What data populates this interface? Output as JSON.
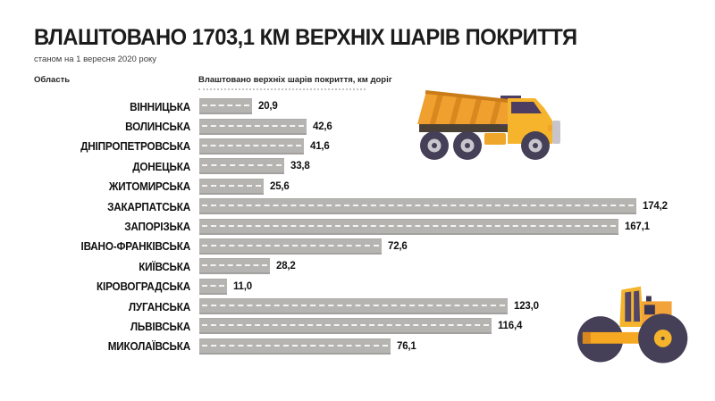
{
  "header": {
    "title": "ВЛАШТОВАНО 1703,1 КМ ВЕРХНІХ ШАРІВ ПОКРИТТЯ",
    "subtitle": "станом на 1 вересня 2020 року"
  },
  "table_headers": {
    "region": "Область",
    "value": "Влаштовано верхніх шарів покриття, км доріг"
  },
  "chart_data": {
    "type": "bar",
    "orientation": "horizontal",
    "title": "ВЛАШТОВАНО 1703,1 КМ ВЕРХНІХ ШАРІВ ПОКРИТТЯ",
    "subtitle": "станом на 1 вересня 2020 року",
    "xlabel": "Влаштовано верхніх шарів покриття, км доріг",
    "total_km": 1703.1,
    "as_of": "1 вересня 2020",
    "xlim": [
      0,
      180
    ],
    "grid": false,
    "legend": false,
    "bar_color": "#b5b4b1",
    "categories": [
      "ВІННИЦЬКА",
      "ВОЛИНСЬКА",
      "ДНІПРОПЕТРОВСЬКА",
      "ДОНЕЦЬКА",
      "ЖИТОМИРСЬКА",
      "ЗАКАРПАТСЬКА",
      "ЗАПОРІЗЬКА",
      "ІВАНО-ФРАНКІВСЬКА",
      "КИЇВСЬКА",
      "КІРОВОГРАДСЬКА",
      "ЛУГАНСЬКА",
      "ЛЬВІВСЬКА",
      "МИКОЛАЇВСЬКА"
    ],
    "values": [
      20.9,
      42.6,
      41.6,
      33.8,
      25.6,
      174.2,
      167.1,
      72.6,
      28.2,
      11.0,
      123.0,
      116.4,
      76.1
    ],
    "value_labels": [
      "20,9",
      "42,6",
      "41,6",
      "33,8",
      "25,6",
      "174,2",
      "167,1",
      "72,6",
      "28,2",
      "11,0",
      "123,0",
      "116,4",
      "76,1"
    ]
  },
  "icons": {
    "dump_truck": "dump-truck-icon",
    "road_roller": "road-roller-icon"
  },
  "colors": {
    "title_text": "#1b1b1b",
    "bar_fill": "#b5b4b1",
    "bar_dash_line": "#ffffff",
    "vehicle_orange": "#F2A33A",
    "vehicle_yellow": "#F6B42C",
    "vehicle_dark_wheel": "#453F57",
    "vehicle_purple": "#4E3D63",
    "wheel_hub": "#C9C7CE"
  }
}
